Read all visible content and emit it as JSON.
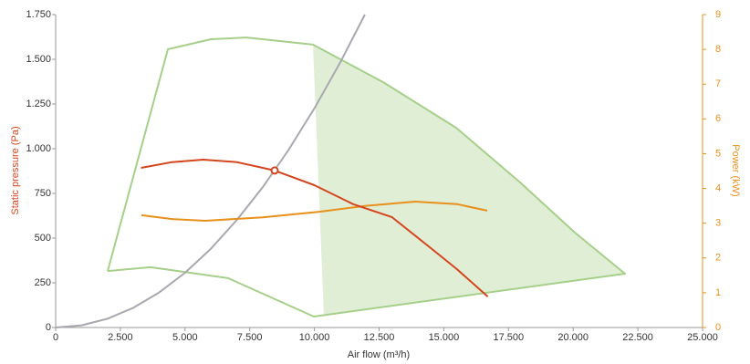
{
  "chart_data": {
    "type": "line",
    "x_label": "Air flow (m³/h)",
    "y_label": "Static pressure (Pa)",
    "y2_label": "Power (kW)",
    "xlim": [
      0,
      25000
    ],
    "xticks": [
      0,
      {
        "value": 2500,
        "label": "2.500"
      },
      {
        "value": 5000,
        "label": "5.000"
      },
      {
        "value": 7500,
        "label": "7.500"
      },
      {
        "value": 10000,
        "label": "10.000"
      },
      {
        "value": 12500,
        "label": "12.500"
      },
      {
        "value": 15000,
        "label": "15.000"
      },
      {
        "value": 17500,
        "label": "17.500"
      },
      {
        "value": 20000,
        "label": "20.000"
      },
      {
        "value": 22500,
        "label": "22.500"
      },
      {
        "value": 25000,
        "label": "25.000"
      }
    ],
    "ylim": [
      0,
      1750
    ],
    "yticks": [
      0,
      250,
      500,
      750,
      {
        "value": 1000,
        "label": "1.000"
      },
      {
        "value": 1250,
        "label": "1.250"
      },
      {
        "value": 1500,
        "label": "1.500"
      },
      {
        "value": 1750,
        "label": "1.750"
      }
    ],
    "y2lim": [
      0,
      9
    ],
    "y2ticks": [
      0,
      1,
      2,
      3,
      4,
      5,
      6,
      7,
      8,
      9
    ],
    "y_label_color": "#d4451e",
    "y2_label_color": "#e8901c",
    "series": [
      {
        "style": "area",
        "color": "#a6cf8a",
        "x": [
          9944,
          12660,
          15480,
          17950,
          20064,
          22003,
          10367
        ],
        "values": [
          1582,
          1372,
          1117,
          811,
          531,
          301,
          66
        ]
      },
      {
        "style": "line",
        "color": "#a6cf8a",
        "x": [
          2010,
          4337,
          6000,
          7370,
          9944,
          12660,
          15480,
          17950,
          20064,
          22003,
          9980,
          6664,
          3667,
          2010
        ],
        "values": [
          316,
          1556,
          1612,
          1622,
          1582,
          1372,
          1117,
          811,
          531,
          301,
          61,
          276,
          337,
          316
        ]
      },
      {
        "style": "line",
        "color": "#a8a8b0",
        "x": [
          0,
          1000,
          2000,
          3000,
          4000,
          5000,
          6000,
          7000,
          8000,
          9000,
          10000,
          11000,
          11950
        ],
        "values": [
          0,
          12,
          49,
          110,
          196,
          306,
          441,
          601,
          784,
          993,
          1226,
          1483,
          1750
        ]
      },
      {
        "style": "line",
        "color": "#e8901c",
        "axis": "y2",
        "x": [
          3314,
          4500,
          5783,
          8000,
          10190,
          12000,
          13893,
          15500,
          16678
        ],
        "values": [
          3.23,
          3.12,
          3.07,
          3.17,
          3.33,
          3.5,
          3.62,
          3.55,
          3.36
        ]
      },
      {
        "style": "line",
        "color": "#d4451e",
        "x": [
          3300,
          4500,
          5700,
          7000,
          8463,
          10000,
          11500,
          13000,
          14500,
          15500,
          16700
        ],
        "values": [
          893,
          925,
          939,
          925,
          878,
          796,
          690,
          617,
          444,
          327,
          173
        ]
      }
    ],
    "points": [
      {
        "x": 8463,
        "y": 878,
        "color": "#d4451e"
      }
    ]
  }
}
